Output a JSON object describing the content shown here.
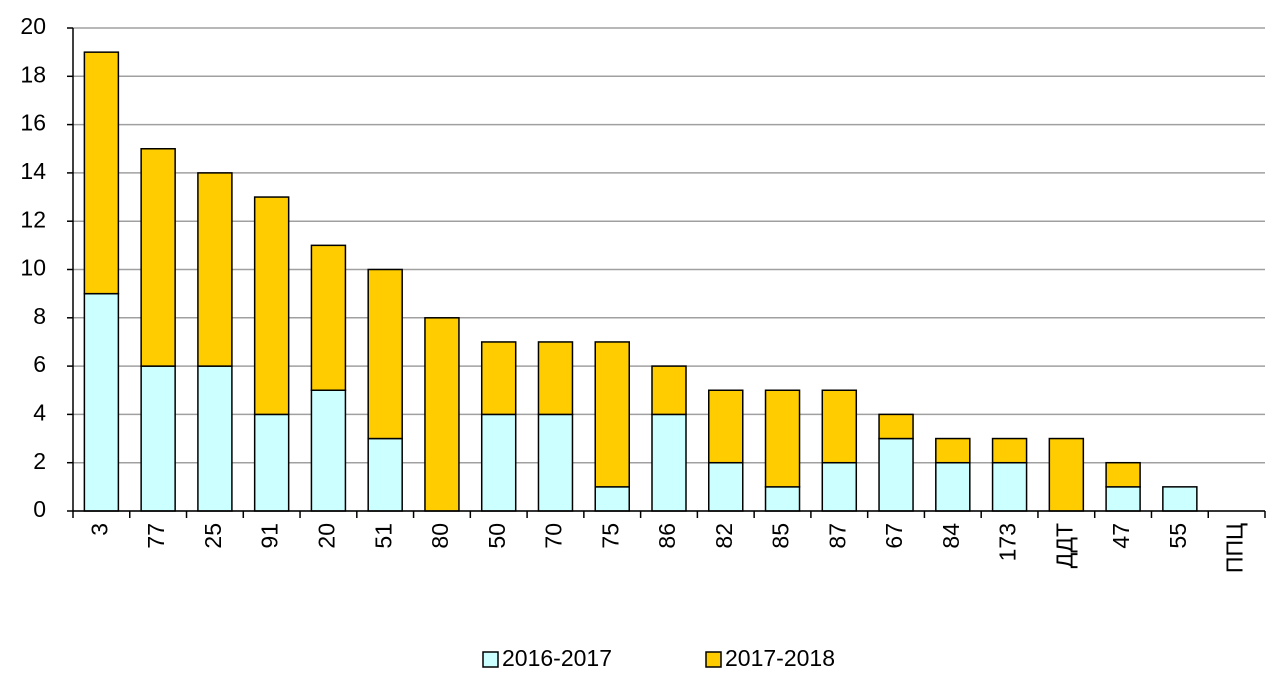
{
  "chart_data": {
    "type": "stacked_bar",
    "categories": [
      "3",
      "77",
      "25",
      "91",
      "20",
      "51",
      "80",
      "50",
      "70",
      "75",
      "86",
      "82",
      "85",
      "87",
      "67",
      "84",
      "173",
      "ДДТ",
      "47",
      "55",
      "ППЦ"
    ],
    "series": [
      {
        "name": "2016-2017",
        "color": "#ccffff",
        "values": [
          9,
          6,
          6,
          4,
          5,
          3,
          0,
          4,
          4,
          1,
          4,
          2,
          1,
          2,
          3,
          2,
          2,
          0,
          1,
          1,
          0
        ]
      },
      {
        "name": "2017-2018",
        "color": "#ffcc00",
        "values": [
          10,
          9,
          8,
          9,
          6,
          7,
          8,
          3,
          3,
          6,
          2,
          3,
          4,
          3,
          1,
          1,
          1,
          3,
          1,
          0,
          0
        ]
      }
    ],
    "ylim": [
      0,
      20
    ],
    "yticks": [
      0,
      2,
      4,
      6,
      8,
      10,
      12,
      14,
      16,
      18,
      20
    ],
    "grid": true,
    "legend": "bottom"
  }
}
